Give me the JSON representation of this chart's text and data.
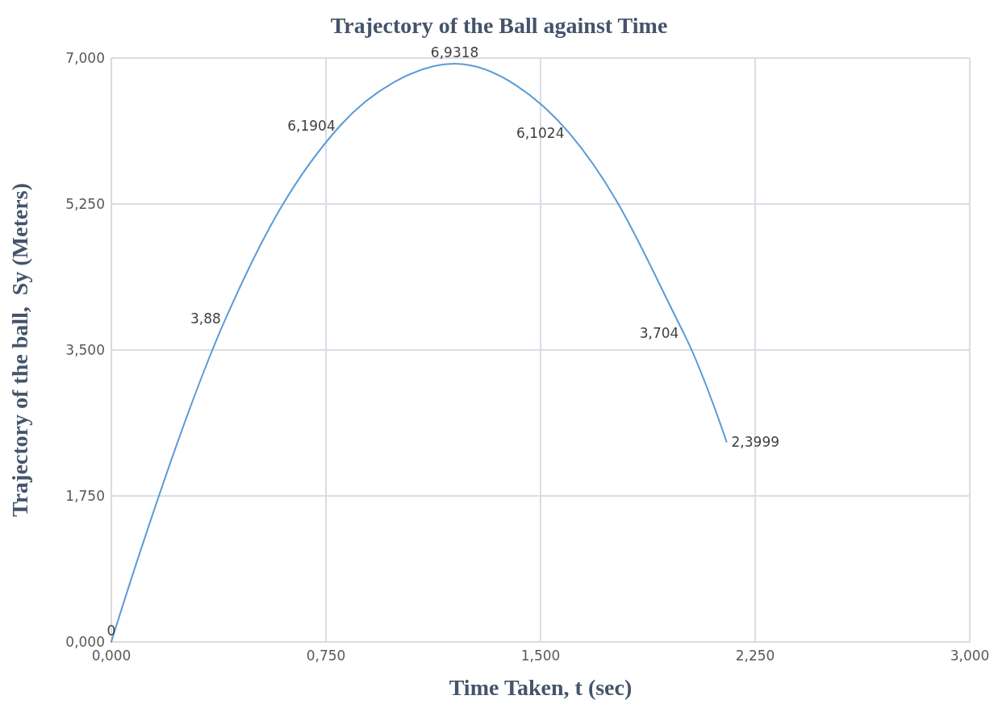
{
  "chart_data": {
    "type": "line",
    "title": "Trajectory of the Ball against Time",
    "xlabel": "Time Taken, t (sec)",
    "ylabel": "Trajectory of the ball,  Sy (Meters)",
    "x": [
      0,
      0.4,
      0.8,
      1.2,
      1.6,
      2.0,
      2.15
    ],
    "series": [
      {
        "color": "#5b9bd5",
        "values": [
          0,
          3.88,
          6.1904,
          6.9318,
          6.1024,
          3.704,
          2.3999
        ],
        "value_labels": [
          "0",
          "3,88",
          "6,1904",
          "6,9318",
          "6,1024",
          "3,704",
          "2,3999"
        ]
      }
    ],
    "xlim": [
      0,
      3
    ],
    "xticks": [
      {
        "value": 0,
        "label": "0,000"
      },
      {
        "value": 0.75,
        "label": "0,750"
      },
      {
        "value": 1.5,
        "label": "1,500"
      },
      {
        "value": 2.25,
        "label": "2,250"
      },
      {
        "value": 3,
        "label": "3,000"
      }
    ],
    "ylim": [
      0,
      7
    ],
    "yticks": [
      {
        "value": 0,
        "label": "0,000"
      },
      {
        "value": 1.75,
        "label": "1,750"
      },
      {
        "value": 3.5,
        "label": "3,500"
      },
      {
        "value": 5.25,
        "label": "5,250"
      },
      {
        "value": 7,
        "label": "7,000"
      }
    ],
    "grid": true,
    "marker": "none",
    "line_style": "solid"
  }
}
